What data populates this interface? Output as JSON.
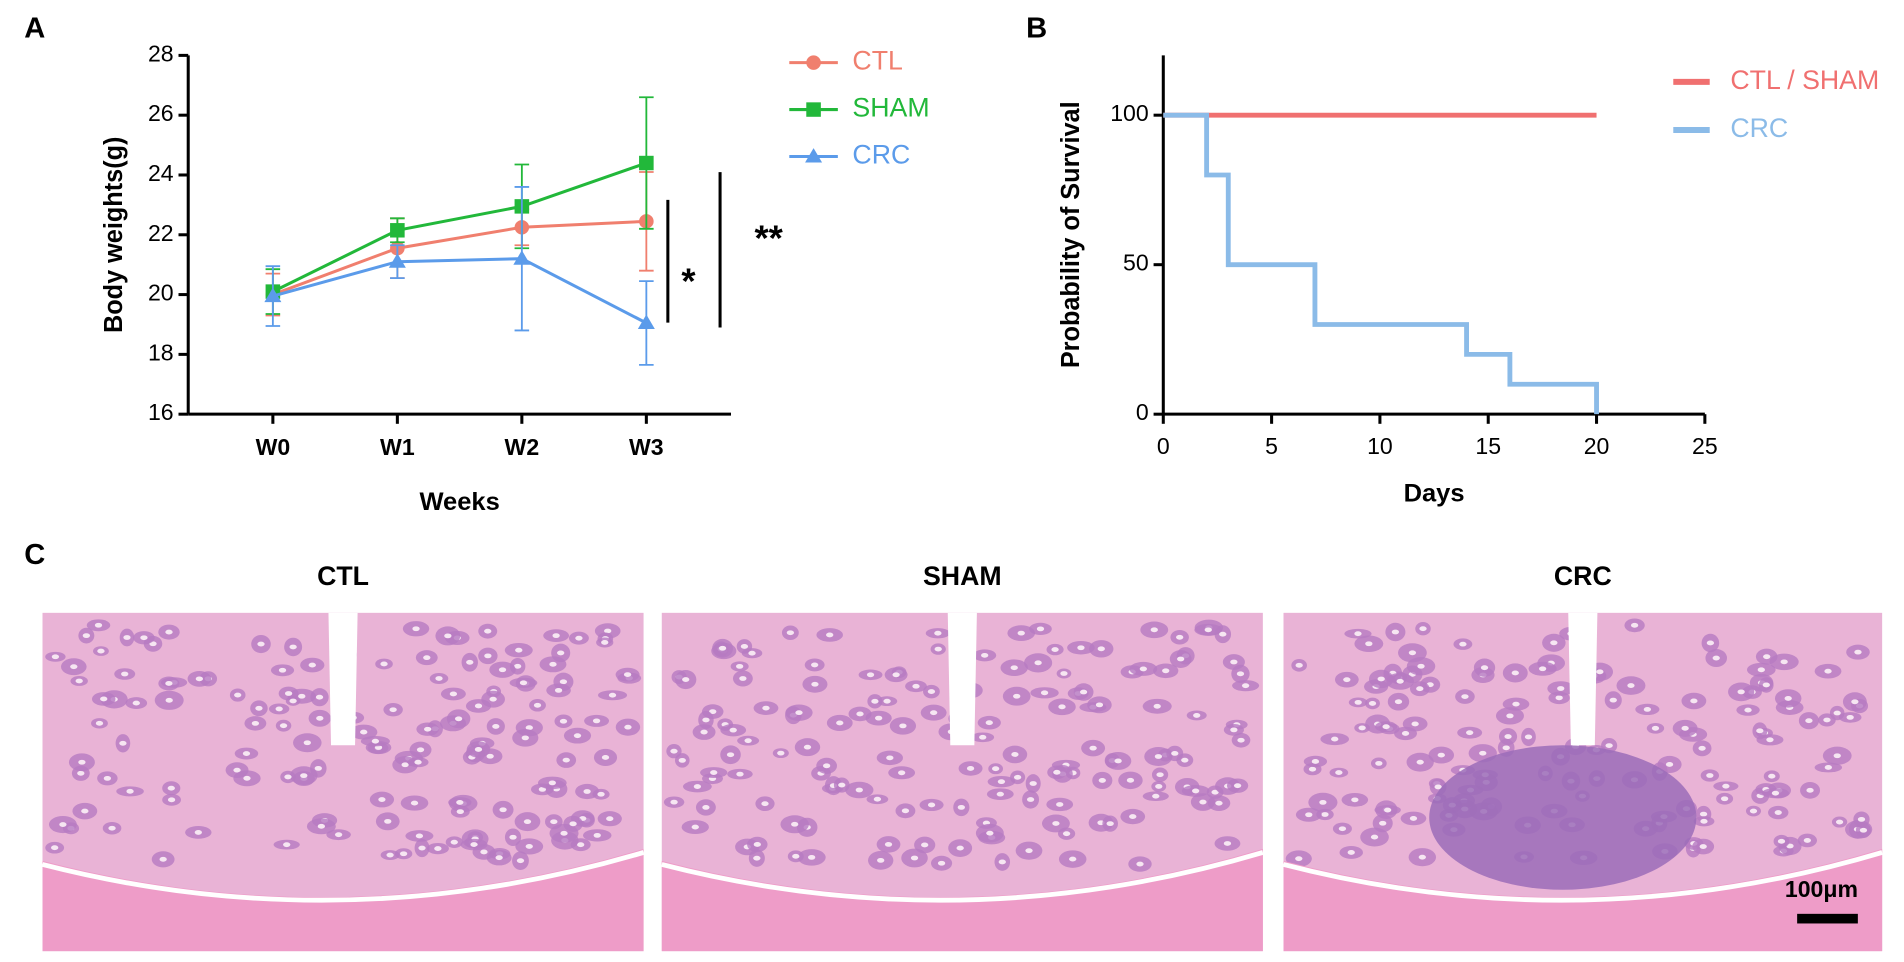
{
  "panel_labels": [
    "A",
    "B",
    "C"
  ],
  "chart_data": [
    {
      "type": "line",
      "xlabel": "Weeks",
      "ylabel": "Body weights(g)",
      "categories": [
        "W0",
        "W1",
        "W2",
        "W3"
      ],
      "ylim": [
        16,
        28
      ],
      "yticks": [
        16,
        18,
        20,
        22,
        24,
        26,
        28
      ],
      "series": [
        {
          "name": "CTL",
          "color": "#f07f6e",
          "marker": "circle",
          "values": [
            20.0,
            21.55,
            22.25,
            22.45
          ],
          "errors": [
            0.7,
            1.0,
            0.6,
            1.65
          ]
        },
        {
          "name": "SHAM",
          "color": "#22b83a",
          "marker": "square",
          "values": [
            20.1,
            22.15,
            22.95,
            24.4
          ],
          "errors": [
            0.75,
            0.4,
            1.4,
            2.2
          ]
        },
        {
          "name": "CRC",
          "color": "#5b9bea",
          "marker": "triangle",
          "values": [
            19.95,
            21.1,
            21.2,
            19.05
          ],
          "errors": [
            1.0,
            0.55,
            2.4,
            1.4
          ]
        }
      ],
      "annotations": [
        "*",
        "**"
      ]
    },
    {
      "type": "line",
      "step": true,
      "xlabel": "Days",
      "ylabel": "Probability of Survival",
      "xlim": [
        0,
        25
      ],
      "xticks": [
        0,
        5,
        10,
        15,
        20,
        25
      ],
      "ylim": [
        0,
        120
      ],
      "yticks": [
        0,
        50,
        100
      ],
      "series": [
        {
          "name": "CTL / SHAM",
          "color": "#f07070",
          "x": [
            0,
            20
          ],
          "values": [
            100,
            100
          ]
        },
        {
          "name": "CRC",
          "color": "#8bbbe8",
          "x": [
            0,
            2,
            3,
            7,
            14,
            16,
            20
          ],
          "values": [
            100,
            80,
            50,
            30,
            20,
            10,
            0
          ]
        }
      ]
    }
  ],
  "histology": {
    "titles": [
      "CTL",
      "SHAM",
      "CRC"
    ],
    "scale_bar": "100μm"
  }
}
